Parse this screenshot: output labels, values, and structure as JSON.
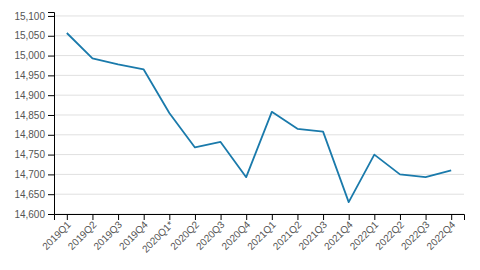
{
  "chart_data": {
    "type": "line",
    "categories": [
      "2019Q1",
      "2019Q2",
      "2019Q3",
      "2019Q4",
      "2020Q1*",
      "2020Q2",
      "2020Q3",
      "2020Q4",
      "2021Q1",
      "2021Q2",
      "2021Q3",
      "2021Q4",
      "2022Q1",
      "2022Q2",
      "2022Q3",
      "2022Q4"
    ],
    "values": [
      15057,
      14993,
      14978,
      14965,
      14855,
      14768,
      14782,
      14693,
      14858,
      14815,
      14808,
      14630,
      14750,
      14700,
      14693,
      14710
    ],
    "color": "#1a7aab",
    "ylim": [
      14600,
      15110
    ],
    "yticks": [
      {
        "value": 14600,
        "label": "14,600"
      },
      {
        "value": 14650,
        "label": "14,650"
      },
      {
        "value": 14700,
        "label": "14,700"
      },
      {
        "value": 14750,
        "label": "14,750"
      },
      {
        "value": 14800,
        "label": "14,800"
      },
      {
        "value": 14850,
        "label": "14,850"
      },
      {
        "value": 14900,
        "label": "14,900"
      },
      {
        "value": 14950,
        "label": "14,950"
      },
      {
        "value": 15000,
        "label": "15,000"
      },
      {
        "value": 15050,
        "label": "15,050"
      },
      {
        "value": 15100,
        "label": "15,100"
      }
    ],
    "grid": true
  }
}
